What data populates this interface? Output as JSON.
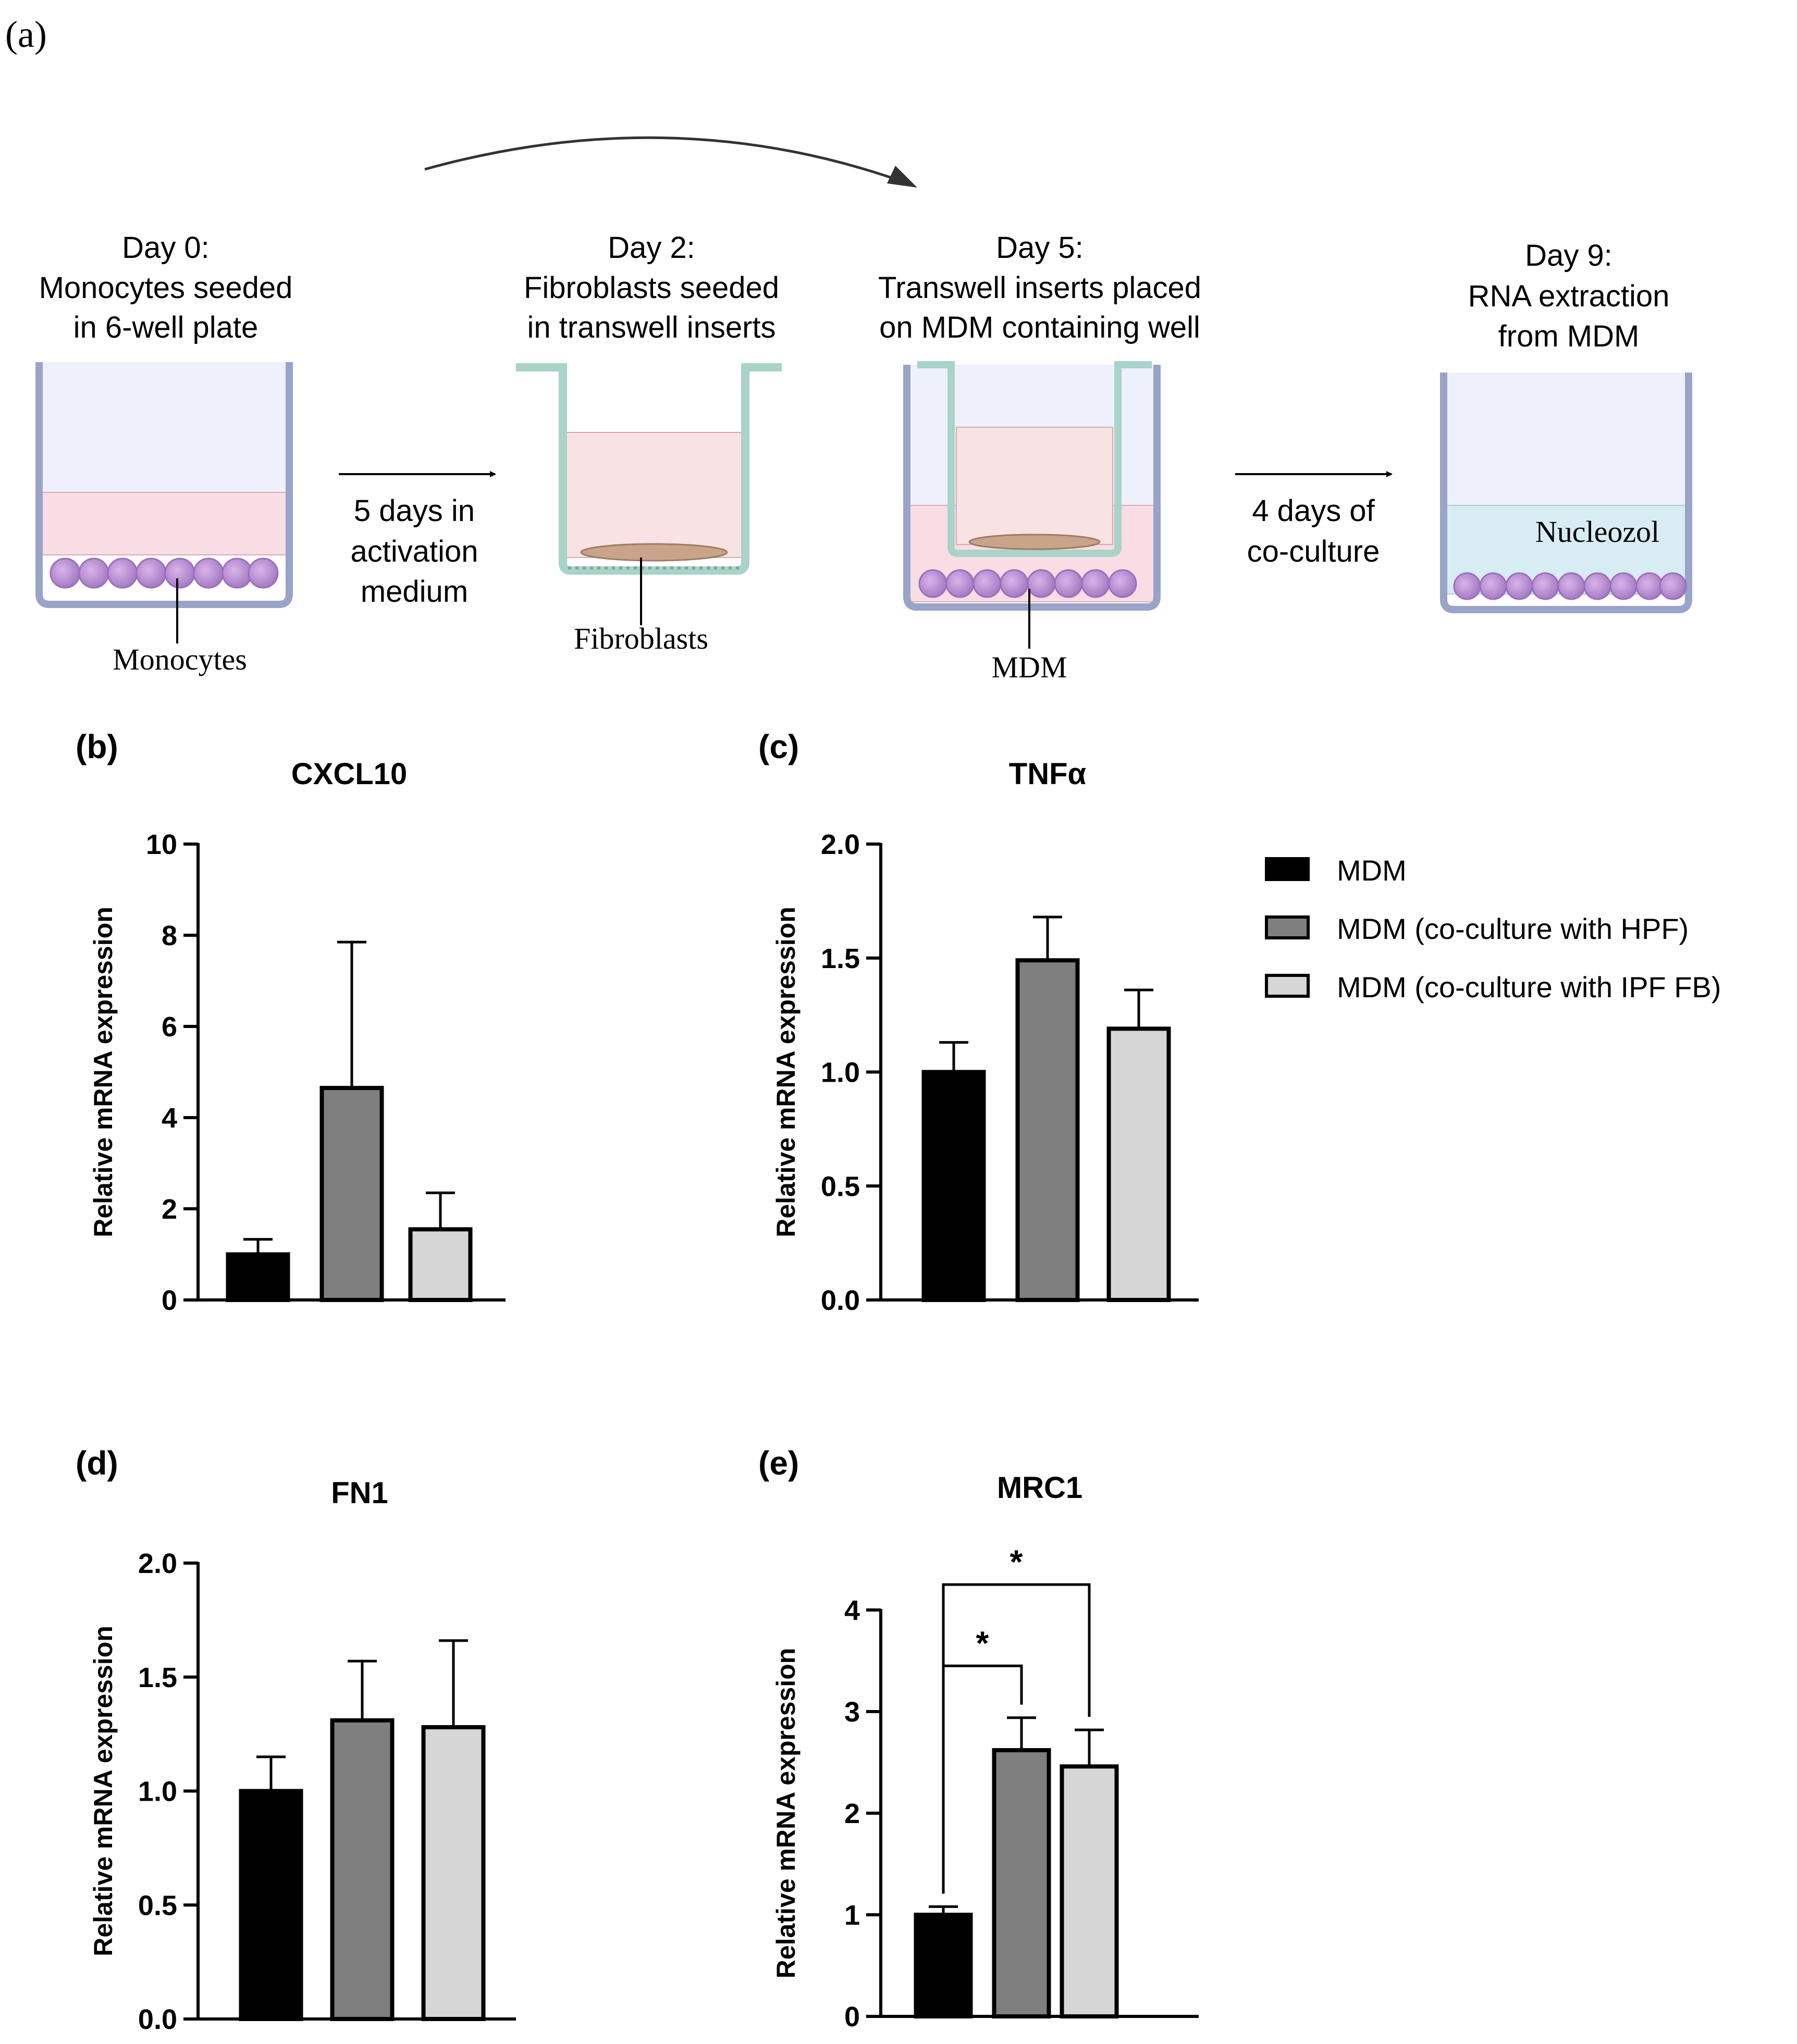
{
  "panel_a": {
    "label": "(a)",
    "step0": {
      "line1": "Day 0:",
      "line2": "Monocytes seeded",
      "line3": "in 6-well plate",
      "callout": "Monocytes"
    },
    "arrow1": {
      "line1": "5 days in",
      "line2": "activation",
      "line3": "medium"
    },
    "step2": {
      "line1": "Day 2:",
      "line2": "Fibroblasts seeded",
      "line3": "in transwell inserts",
      "callout": "Fibroblasts"
    },
    "step5": {
      "line1": "Day 5:",
      "line2": "Transwell inserts placed",
      "line3": "on MDM containing well",
      "callout": "MDM"
    },
    "arrow2": {
      "line1": "4 days of",
      "line2": "co-culture"
    },
    "step9": {
      "line1": "Day 9:",
      "line2": "RNA extraction",
      "line3": "from MDM",
      "well_label": "Nucleozol"
    }
  },
  "legend": {
    "items": [
      {
        "label": "MDM",
        "color": "#000000"
      },
      {
        "label": "MDM (co-culture with HPF)",
        "color": "#7f7f7f"
      },
      {
        "label": "MDM (co-culture with IPF FB)",
        "color": "#d6d6d6"
      }
    ]
  },
  "chart_data": [
    {
      "panel": "(b)",
      "type": "bar",
      "title": "CXCL10",
      "ylabel": "Relative mRNA expression",
      "ylim": [
        0,
        10
      ],
      "yticks": [
        "0",
        "2",
        "4",
        "6",
        "8",
        "10"
      ],
      "ytick_values": [
        0,
        2,
        4,
        6,
        8,
        10
      ],
      "categories": [
        "MDM",
        "MDM (co-culture with HPF)",
        "MDM (co-culture with IPF FB)"
      ],
      "values": [
        1.0,
        4.65,
        1.55
      ],
      "errors": [
        0.33,
        3.2,
        0.8
      ],
      "significance": []
    },
    {
      "panel": "(c)",
      "type": "bar",
      "title": "TNFα",
      "ylabel": "Relative mRNA expression",
      "ylim": [
        0,
        2.0
      ],
      "yticks": [
        "0.0",
        "0.5",
        "1.0",
        "1.5",
        "2.0"
      ],
      "ytick_values": [
        0,
        0.5,
        1.0,
        1.5,
        2.0
      ],
      "categories": [
        "MDM",
        "MDM (co-culture with HPF)",
        "MDM (co-culture with IPF FB)"
      ],
      "values": [
        1.0,
        1.49,
        1.19
      ],
      "errors": [
        0.13,
        0.19,
        0.17
      ],
      "significance": []
    },
    {
      "panel": "(d)",
      "type": "bar",
      "title": "FN1",
      "ylabel": "Relative mRNA expression",
      "ylim": [
        0,
        2.0
      ],
      "yticks": [
        "0.0",
        "0.5",
        "1.0",
        "1.5",
        "2.0"
      ],
      "ytick_values": [
        0,
        0.5,
        1.0,
        1.5,
        2.0
      ],
      "categories": [
        "MDM",
        "MDM (co-culture with HPF)",
        "MDM (co-culture with IPF FB)"
      ],
      "values": [
        1.0,
        1.31,
        1.28
      ],
      "errors": [
        0.15,
        0.26,
        0.38
      ],
      "significance": []
    },
    {
      "panel": "(e)",
      "type": "bar",
      "title": "MRC1",
      "ylabel": "Relative mRNA expression",
      "ylim": [
        0,
        4
      ],
      "yticks": [
        "0",
        "1",
        "2",
        "3",
        "4"
      ],
      "ytick_values": [
        0,
        1,
        2,
        3,
        4
      ],
      "categories": [
        "MDM",
        "MDM (co-culture with HPF)",
        "MDM (co-culture with IPF FB)"
      ],
      "values": [
        1.0,
        2.62,
        2.46
      ],
      "errors": [
        0.08,
        0.32,
        0.36
      ],
      "significance": [
        {
          "from": 0,
          "to": 1,
          "label": "*"
        },
        {
          "from": 0,
          "to": 2,
          "label": "*"
        }
      ]
    }
  ]
}
